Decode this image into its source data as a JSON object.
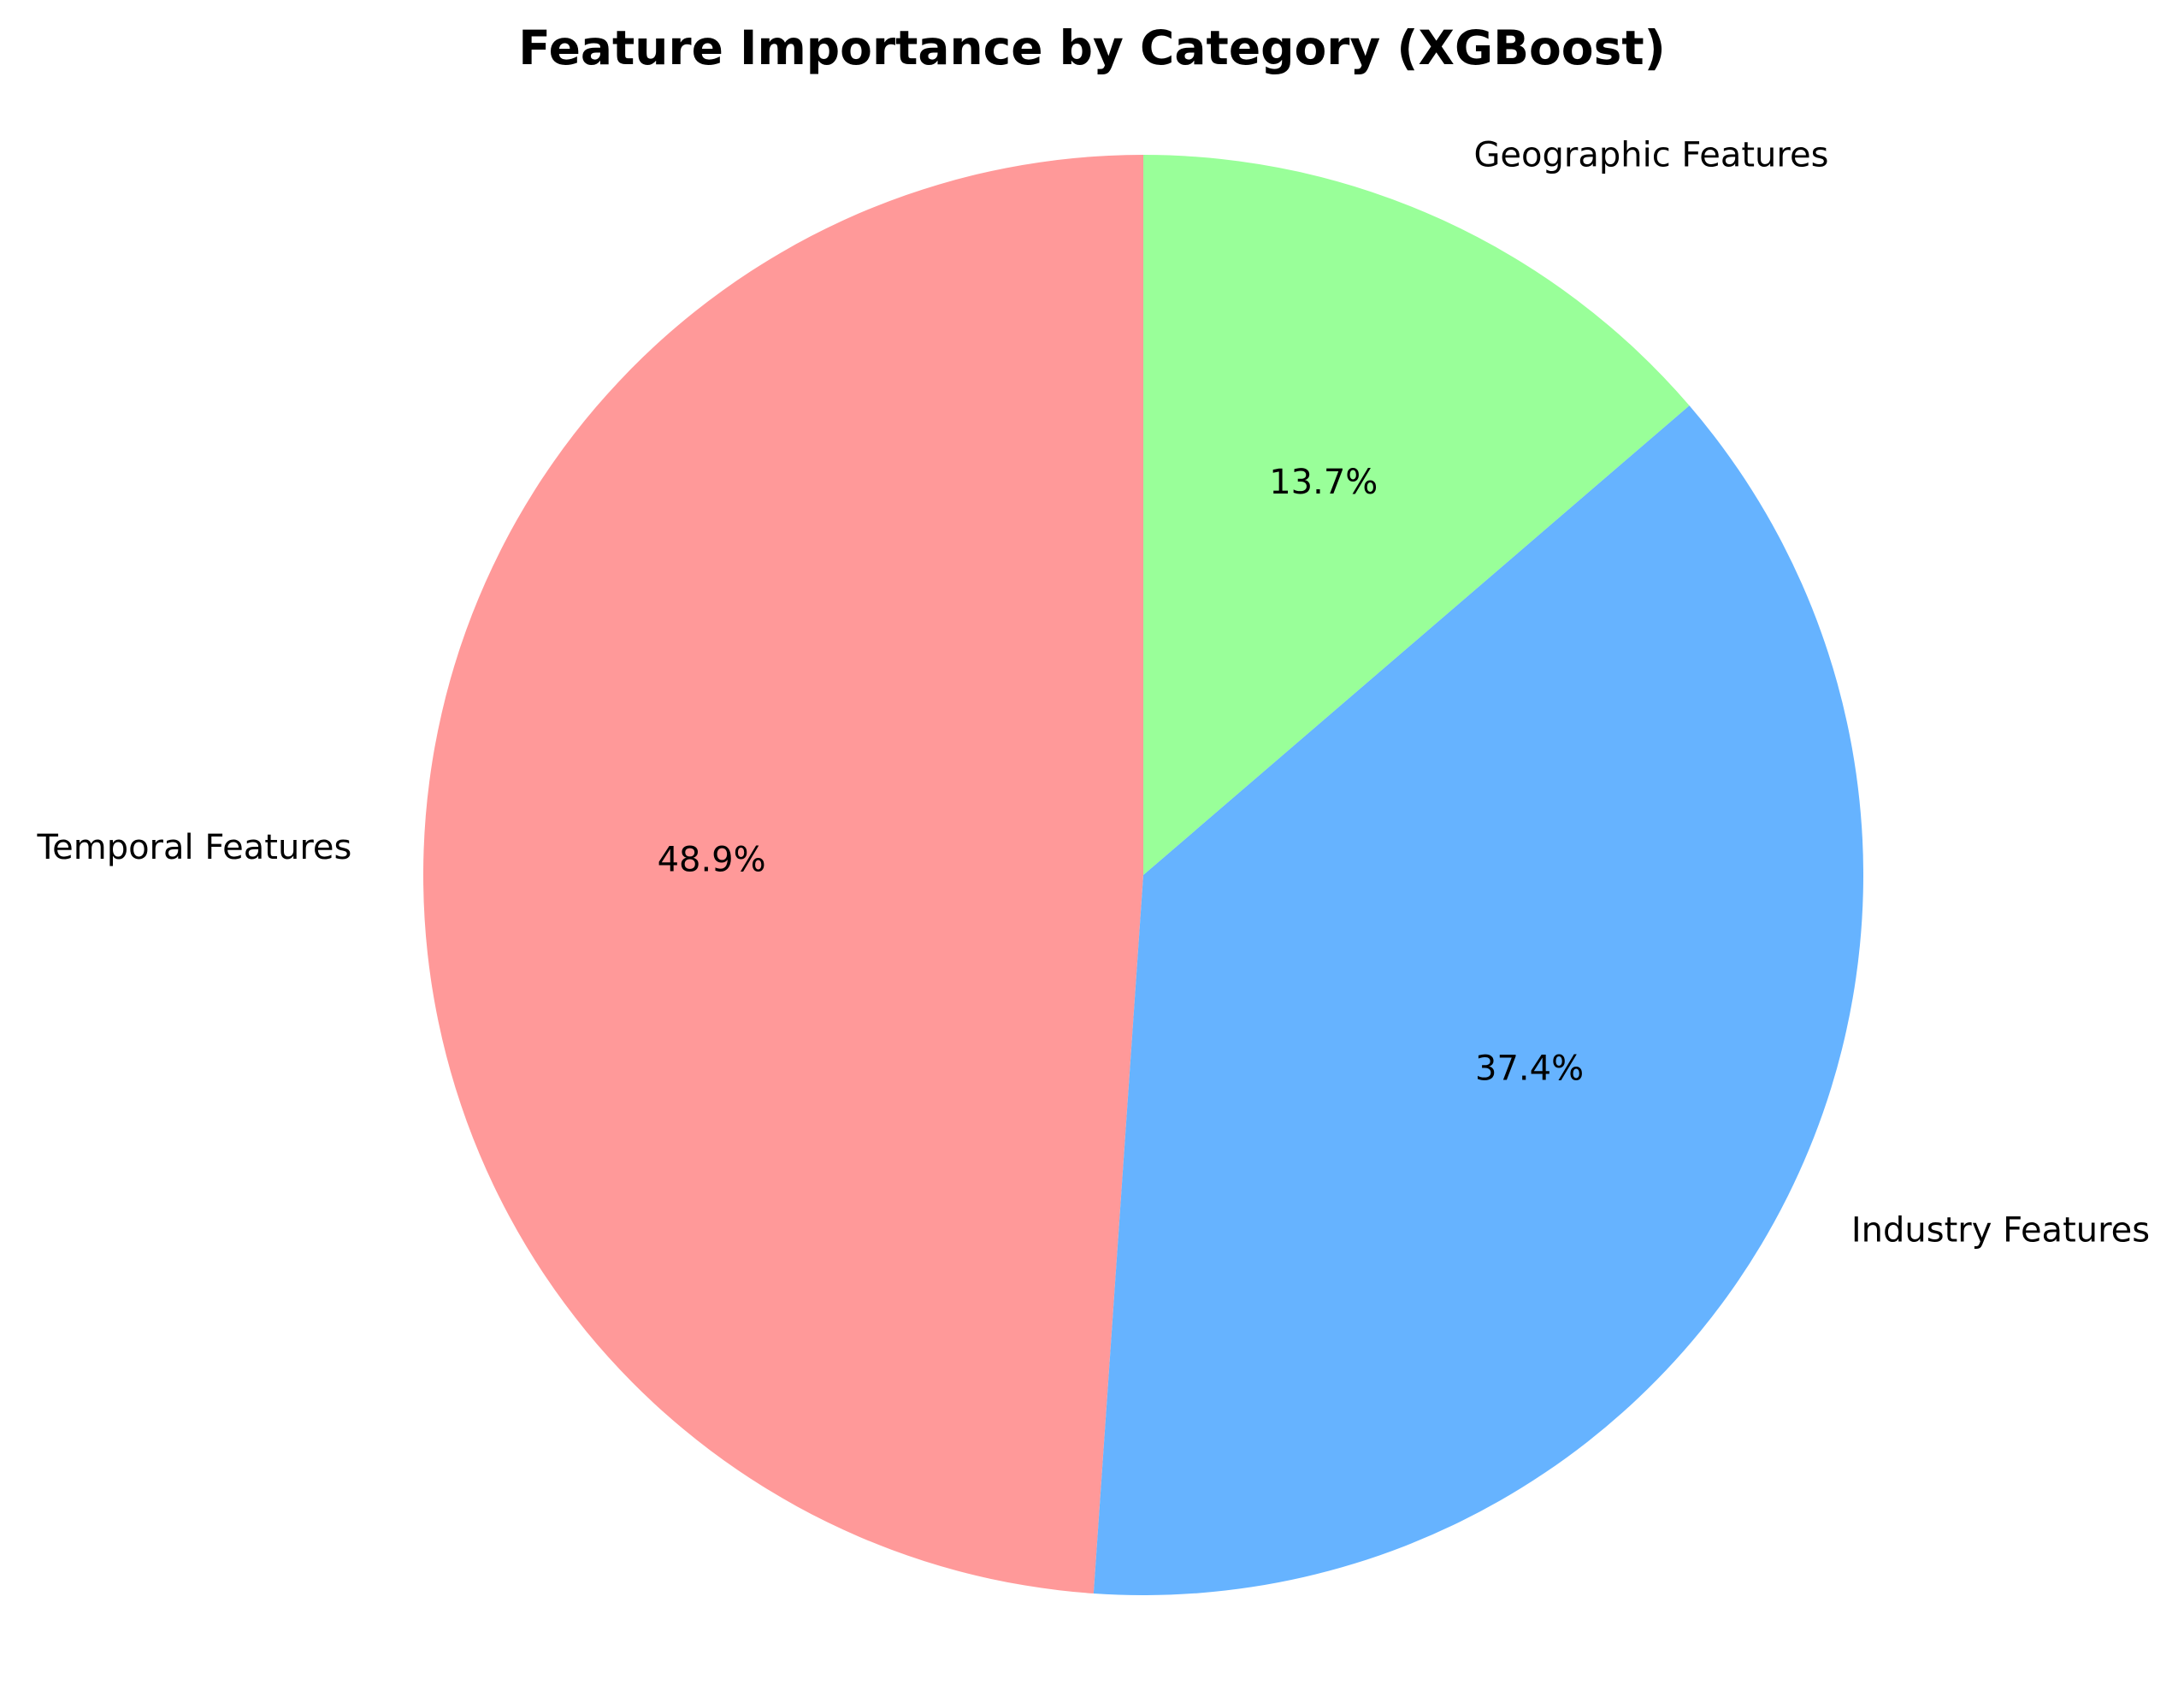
{
  "chart_data": {
    "type": "pie",
    "title": "Feature Importance by Category (XGBoost)",
    "categories": [
      "Temporal Features",
      "Industry Features",
      "Geographic Features"
    ],
    "values": [
      48.9,
      37.4,
      13.7
    ],
    "value_labels": [
      "48.9%",
      "37.4%",
      "13.7%"
    ],
    "colors": [
      "#ff9999",
      "#66b3ff",
      "#99ff99"
    ],
    "start_angle": 90,
    "direction": "counterclockwise"
  }
}
